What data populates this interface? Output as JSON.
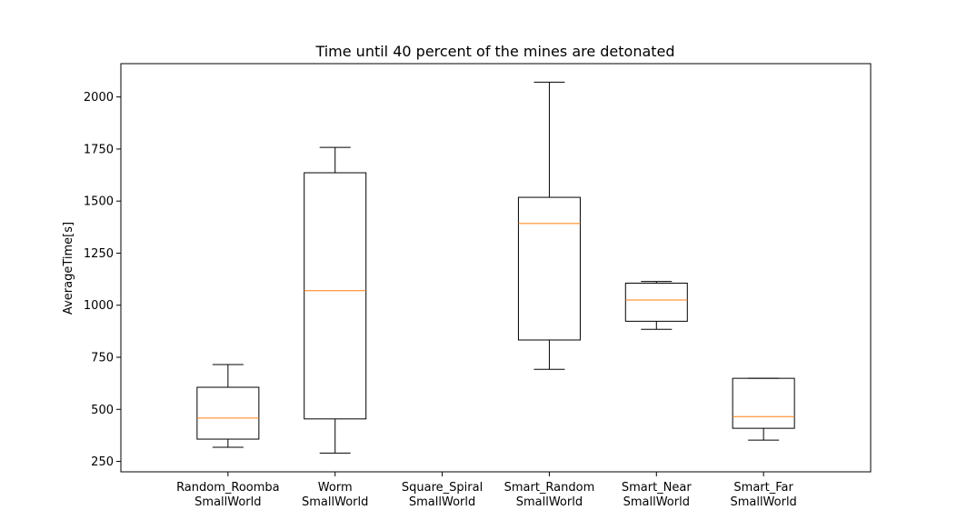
{
  "chart_data": {
    "type": "box",
    "title": "Time until 40 percent of the mines are detonated",
    "xlabel": "",
    "ylabel": "AverageTime[s]",
    "ylim": [
      200,
      2160
    ],
    "yticks": [
      250,
      500,
      750,
      1000,
      1250,
      1500,
      1750,
      2000
    ],
    "ytick_labels": [
      "250",
      "500",
      "750",
      "1000",
      "1250",
      "1500",
      "1750",
      "2000"
    ],
    "grid": false,
    "categories": [
      {
        "line1": "Random_Roomba",
        "line2": "SmallWorld"
      },
      {
        "line1": "Worm",
        "line2": "SmallWorld"
      },
      {
        "line1": "Square_Spiral",
        "line2": "SmallWorld"
      },
      {
        "line1": "Smart_Random",
        "line2": "SmallWorld"
      },
      {
        "line1": "Smart_Near",
        "line2": "SmallWorld"
      },
      {
        "line1": "Smart_Far",
        "line2": "SmallWorld"
      }
    ],
    "boxes": [
      {
        "whisker_low": 318,
        "q1": 357,
        "median": 458,
        "q3": 606,
        "whisker_high": 715
      },
      {
        "whisker_low": 290,
        "q1": 454,
        "median": 1070,
        "q3": 1636,
        "whisker_high": 1758
      },
      null,
      {
        "whisker_low": 692,
        "q1": 833,
        "median": 1392,
        "q3": 1518,
        "whisker_high": 2071
      },
      {
        "whisker_low": 884,
        "q1": 923,
        "median": 1025,
        "q3": 1106,
        "whisker_high": 1114
      },
      {
        "whisker_low": 352,
        "q1": 409,
        "median": 465,
        "q3": 649,
        "whisker_high": 649
      }
    ],
    "colors": {
      "box": "#000000",
      "median": "#ff7f0e",
      "axes": "#000000",
      "background": "#ffffff"
    }
  }
}
